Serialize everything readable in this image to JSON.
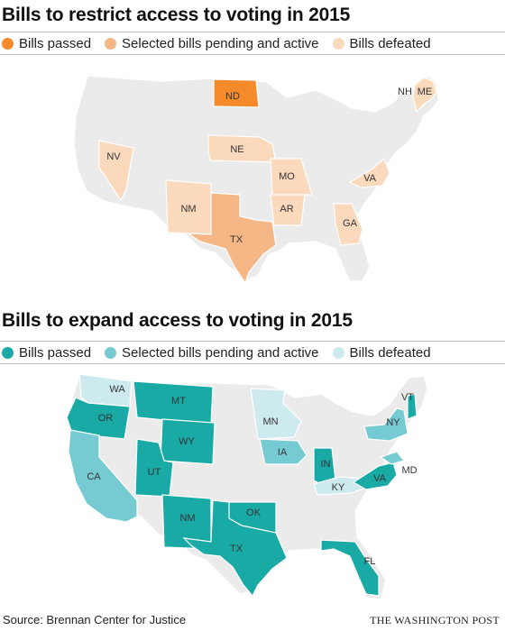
{
  "colors": {
    "land": "#ebebeb",
    "restrict": {
      "passed": "#f58a2a",
      "pending": "#f5b785",
      "defeated": "#fbd9bd"
    },
    "expand": {
      "passed": "#19aaa6",
      "pending": "#76cad1",
      "defeated": "#cdeaef"
    }
  },
  "restrict": {
    "title": "Bills to restrict access to voting in 2015",
    "legend": [
      {
        "key": "passed",
        "label": "Bills passed"
      },
      {
        "key": "pending",
        "label": "Selected bills pending and active"
      },
      {
        "key": "defeated",
        "label": "Bills defeated"
      }
    ],
    "states": [
      {
        "abbr": "ND",
        "status": "passed"
      },
      {
        "abbr": "TX",
        "status": "pending"
      },
      {
        "abbr": "NH",
        "status": "none"
      },
      {
        "abbr": "ME",
        "status": "defeated"
      },
      {
        "abbr": "NV",
        "status": "defeated"
      },
      {
        "abbr": "NE",
        "status": "defeated"
      },
      {
        "abbr": "MO",
        "status": "defeated"
      },
      {
        "abbr": "VA",
        "status": "defeated"
      },
      {
        "abbr": "NM",
        "status": "defeated"
      },
      {
        "abbr": "AR",
        "status": "defeated"
      },
      {
        "abbr": "GA",
        "status": "defeated"
      }
    ]
  },
  "expand": {
    "title": "Bills to expand access to voting in 2015",
    "legend": [
      {
        "key": "passed",
        "label": "Bills passed"
      },
      {
        "key": "pending",
        "label": "Selected bills pending and active"
      },
      {
        "key": "defeated",
        "label": "Bills defeated"
      }
    ],
    "states": [
      {
        "abbr": "WA",
        "status": "defeated"
      },
      {
        "abbr": "OR",
        "status": "passed"
      },
      {
        "abbr": "MT",
        "status": "passed"
      },
      {
        "abbr": "WY",
        "status": "passed"
      },
      {
        "abbr": "UT",
        "status": "passed"
      },
      {
        "abbr": "CA",
        "status": "pending"
      },
      {
        "abbr": "NM",
        "status": "passed"
      },
      {
        "abbr": "OK",
        "status": "passed"
      },
      {
        "abbr": "TX",
        "status": "passed"
      },
      {
        "abbr": "MN",
        "status": "defeated"
      },
      {
        "abbr": "IA",
        "status": "pending"
      },
      {
        "abbr": "IN",
        "status": "passed"
      },
      {
        "abbr": "KY",
        "status": "defeated"
      },
      {
        "abbr": "VA",
        "status": "passed"
      },
      {
        "abbr": "MD",
        "status": "pending"
      },
      {
        "abbr": "NY",
        "status": "pending"
      },
      {
        "abbr": "VT",
        "status": "passed"
      },
      {
        "abbr": "FL",
        "status": "passed"
      }
    ]
  },
  "footer": {
    "source": "Source: Brennan Center for Justice",
    "credit": "THE WASHINGTON POST"
  }
}
